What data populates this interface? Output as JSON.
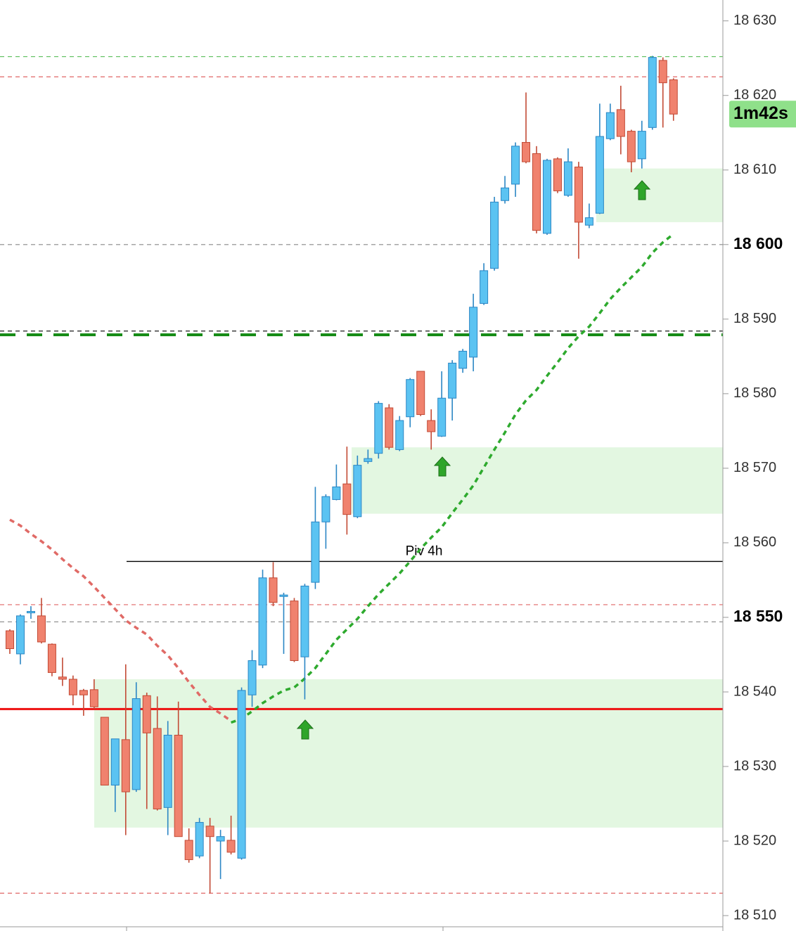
{
  "chart_data": {
    "type": "candlestick",
    "up_color": "#5bc3f2",
    "up_border": "#2b86c4",
    "down_color": "#f0826e",
    "down_border": "#c24a35",
    "candles": {
      "open": [
        18548.2,
        18545.1,
        18550.6,
        18550.2,
        18546.4,
        18542.0,
        18541.7,
        18540.2,
        18540.3,
        18536.6,
        18527.5,
        18533.6,
        18526.9,
        18539.5,
        18535.1,
        18524.5,
        18534.2,
        18520.1,
        18518.0,
        18522.0,
        18520.0,
        18520.1,
        18517.7,
        18539.6,
        18543.6,
        18555.3,
        18552.8,
        18552.2,
        18544.7,
        18554.7,
        18562.8,
        18565.8,
        18567.9,
        18563.5,
        18570.9,
        18572.0,
        18578.1,
        18572.5,
        18576.9,
        18583.0,
        18576.4,
        18574.3,
        18579.4,
        18583.4,
        18584.9,
        18592.1,
        18596.8,
        18605.9,
        18608.1,
        18613.7,
        18612.2,
        18601.5,
        18611.5,
        18606.6,
        18610.4,
        18602.6,
        18604.2,
        18614.2,
        18618.1,
        18615.2,
        18611.5,
        18615.7,
        18624.7,
        18622.1
      ],
      "high": [
        18548.4,
        18550.4,
        18551.5,
        18552.6,
        18546.5,
        18544.6,
        18542.2,
        18540.4,
        18541.7,
        18536.6,
        18533.7,
        18543.7,
        18541.3,
        18539.9,
        18539.4,
        18536.1,
        18538.7,
        18521.7,
        18523.1,
        18523.1,
        18521.5,
        18523.4,
        18540.6,
        18545.6,
        18556.4,
        18557.4,
        18553.3,
        18552.6,
        18554.5,
        18567.5,
        18566.5,
        18570.5,
        18572.9,
        18571.7,
        18572.5,
        18579.0,
        18578.6,
        18577.0,
        18582.1,
        18583.0,
        18577.9,
        18583.0,
        18584.5,
        18586.0,
        18593.4,
        18597.5,
        18606.4,
        18609.2,
        18613.7,
        18620.4,
        18613.2,
        18611.5,
        18611.7,
        18612.9,
        18611.1,
        18605.5,
        18618.9,
        18618.9,
        18621.3,
        18615.4,
        18616.6,
        18625.3,
        18625.1,
        18622.3
      ],
      "low": [
        18545.1,
        18543.7,
        18549.8,
        18546.5,
        18542.1,
        18540.8,
        18538.2,
        18536.8,
        18537.7,
        18527.5,
        18523.9,
        18520.8,
        18526.6,
        18524.3,
        18524.1,
        18520.8,
        18520.6,
        18517.1,
        18517.7,
        18513.0,
        18514.9,
        18518.2,
        18517.5,
        18538.0,
        18543.2,
        18551.5,
        18545.1,
        18544.0,
        18539.0,
        18553.8,
        18559.2,
        18565.7,
        18561.1,
        18563.3,
        18570.6,
        18571.3,
        18572.5,
        18572.3,
        18575.5,
        18577.0,
        18572.5,
        18574.2,
        18576.4,
        18582.8,
        18583.0,
        18591.9,
        18596.5,
        18605.5,
        18606.4,
        18610.9,
        18601.5,
        18601.3,
        18606.9,
        18606.4,
        18598.1,
        18602.2,
        18604.1,
        18614.0,
        18612.1,
        18609.7,
        18610.2,
        18615.4,
        18615.7,
        18616.6
      ],
      "close": [
        18545.8,
        18550.2,
        18550.8,
        18546.7,
        18542.6,
        18541.7,
        18539.6,
        18539.6,
        18538.0,
        18527.5,
        18533.7,
        18526.6,
        18539.1,
        18534.5,
        18524.3,
        18534.2,
        18520.6,
        18517.5,
        18522.5,
        18520.6,
        18520.6,
        18518.5,
        18540.2,
        18544.2,
        18555.3,
        18552.0,
        18553.0,
        18544.2,
        18554.2,
        18562.8,
        18566.2,
        18567.5,
        18563.8,
        18570.4,
        18571.3,
        18578.7,
        18572.8,
        18576.4,
        18581.9,
        18577.2,
        18574.9,
        18579.4,
        18584.1,
        18585.7,
        18591.6,
        18596.5,
        18605.7,
        18607.6,
        18613.2,
        18611.1,
        18601.9,
        18611.3,
        18607.2,
        18611.1,
        18603.0,
        18603.6,
        18614.5,
        18617.7,
        18614.5,
        18611.1,
        18615.2,
        18625.1,
        18621.7,
        18617.5
      ]
    },
    "series": [
      {
        "color": "#e06a66",
        "values": [
          18563.1,
          18562.3,
          18561.2,
          18560.2,
          18559.1,
          18557.8,
          18556.6,
          18555.5,
          18554.1,
          18552.6,
          18551.1,
          18549.6,
          18548.6,
          18547.7,
          18546.2,
          18544.9,
          18543.2,
          18541.3,
          18539.6,
          18538.0,
          18537.1,
          18536.1,
          null,
          null,
          null,
          null,
          null,
          null,
          null,
          null,
          null,
          null,
          null,
          null,
          null,
          null,
          null,
          null,
          null,
          null,
          null,
          null,
          null,
          null,
          null,
          null,
          null,
          null,
          null,
          null,
          null,
          null,
          null,
          null,
          null,
          null,
          null,
          null,
          null,
          null,
          null,
          null,
          null,
          null
        ]
      },
      {
        "color": "#2eaa2e",
        "values": [
          null,
          null,
          null,
          null,
          null,
          null,
          null,
          null,
          null,
          null,
          null,
          null,
          null,
          null,
          null,
          null,
          null,
          null,
          null,
          null,
          null,
          18535.9,
          18536.4,
          18537.4,
          18538.5,
          18539.4,
          18540.2,
          18540.6,
          18541.8,
          18543.2,
          18545.1,
          18547.0,
          18548.4,
          18549.8,
          18551.5,
          18553.1,
          18554.5,
          18555.9,
          18557.5,
          18559.2,
          18560.7,
          18562.1,
          18564.0,
          18565.8,
          18567.7,
          18570.1,
          18572.5,
          18574.8,
          18577.2,
          18579.1,
          18580.5,
          18582.4,
          18584.2,
          18586.1,
          18587.7,
          18589.0,
          18590.8,
          18592.7,
          18594.2,
          18595.6,
          18597.0,
          18598.9,
          18600.3,
          18601.4
        ]
      }
    ],
    "zones": [
      {
        "top": 18610.2,
        "bottom": 18603.0,
        "color": "#e3f7e1"
      },
      {
        "top": 18572.8,
        "bottom": 18563.9,
        "color": "#e3f7e1"
      },
      {
        "top": 18541.7,
        "bottom": 18521.8,
        "color": "#e3f7e1"
      }
    ],
    "levels": [
      {
        "value": 18625.2,
        "color": "#5cbf5c",
        "style": "dashed"
      },
      {
        "value": 18622.5,
        "color": "#e06666",
        "style": "dashed"
      },
      {
        "value": 18600,
        "color": "#888888",
        "style": "dashed"
      },
      {
        "value": 18588.4,
        "color": "#000000",
        "style": "dashed"
      },
      {
        "value": 18587.9,
        "color": "#138a13",
        "style": "thick-dashed"
      },
      {
        "value": 18551.7,
        "color": "#e06666",
        "style": "dashed"
      },
      {
        "value": 18549.4,
        "color": "#888888",
        "style": "dashed"
      },
      {
        "value": 18537.7,
        "color": "#ee1111",
        "style": "thick"
      },
      {
        "value": 18513.0,
        "color": "#e06666",
        "style": "dashed"
      }
    ],
    "pivot": {
      "label": "Piv 4h",
      "value": 18557.5
    },
    "countdown": {
      "label": "1m42s",
      "value": 18617.5
    },
    "ylim": [
      18508.5,
      18632.8
    ],
    "yticks": [
      {
        "value": 18510,
        "label": "18 510"
      },
      {
        "value": 18520,
        "label": "18 520"
      },
      {
        "value": 18530,
        "label": "18 530"
      },
      {
        "value": 18540,
        "label": "18 540"
      },
      {
        "value": 18550,
        "label": "18 550",
        "bold": true
      },
      {
        "value": 18560,
        "label": "18 560"
      },
      {
        "value": 18570,
        "label": "18 570"
      },
      {
        "value": 18580,
        "label": "18 580"
      },
      {
        "value": 18590,
        "label": "18 590"
      },
      {
        "value": 18600,
        "label": "18 600",
        "bold": true
      },
      {
        "value": 18610,
        "label": "18 610"
      },
      {
        "value": 18620,
        "label": "18 620"
      },
      {
        "value": 18630,
        "label": "18 630"
      }
    ]
  }
}
